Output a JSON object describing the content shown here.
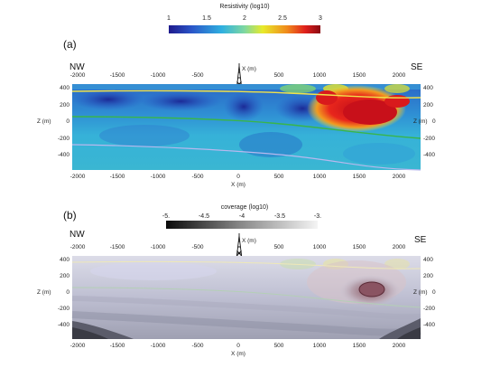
{
  "colorbar_a": {
    "title": "Resistivity (log10)",
    "ticks": [
      "1",
      "1.5",
      "2",
      "2.5",
      "3"
    ]
  },
  "colorbar_b": {
    "title": "coverage (log10)",
    "ticks": [
      "-5.",
      "-4.5",
      "-4",
      "-3.5",
      "-3."
    ]
  },
  "panel_a": {
    "label": "(a)",
    "nw": "NW",
    "se": "SE",
    "x_top_label": "X (m)",
    "x_bottom_label": "X (m)",
    "z_left_label": "Z (m)",
    "z_right_label": "Z (m)",
    "x_ticks": [
      "-2000",
      "-1500",
      "-1000",
      "-500",
      "0",
      "500",
      "1000",
      "1500",
      "2000"
    ],
    "z_ticks": [
      "400",
      "200",
      "0",
      "-200",
      "-400"
    ]
  },
  "panel_b": {
    "label": "(b)",
    "nw": "NW",
    "se": "SE",
    "x_top_label": "X (m)",
    "x_bottom_label": "X (m)",
    "z_left_label": "Z (m)",
    "z_right_label": "Z (m)",
    "x_ticks": [
      "-2000",
      "-1500",
      "-1000",
      "-500",
      "0",
      "500",
      "1000",
      "1500",
      "2000"
    ],
    "z_ticks": [
      "400",
      "200",
      "0",
      "-200",
      "-400"
    ]
  },
  "colors": {
    "deep_blue": "#1a2f9e",
    "blue": "#2a62c9",
    "cyan": "#2fb2d6",
    "green_yellow": "#c6e23a",
    "red": "#d7141a",
    "yellow_line": "#f1e24a",
    "green_line": "#39b54a",
    "grey_line": "#b8b8ee"
  }
}
